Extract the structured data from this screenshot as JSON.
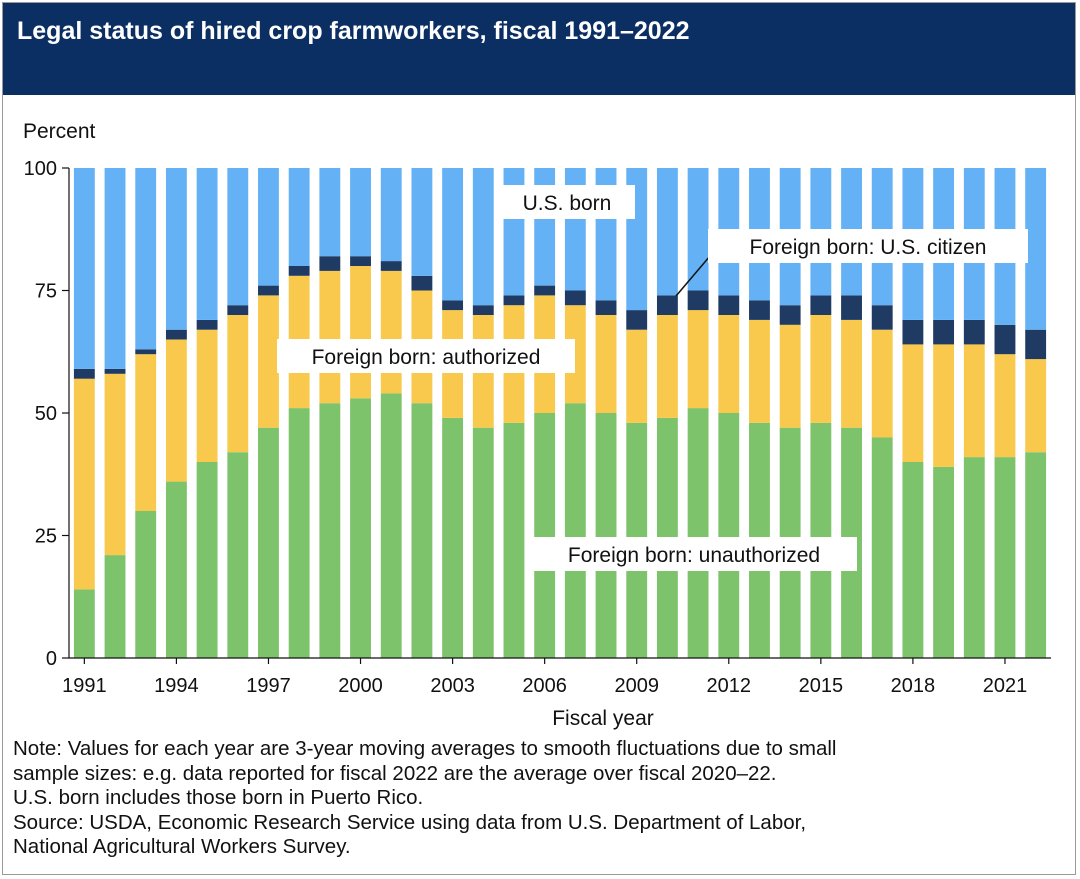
{
  "title": "Legal status of hired crop farmworkers, fiscal 1991–2022",
  "colors": {
    "header_bg": "#0c2f63",
    "unauthorized": "#7dc36b",
    "authorized": "#f8c94c",
    "citizen": "#1f3a63",
    "us_born": "#64b2f5"
  },
  "chart_data": {
    "type": "bar",
    "stacked": true,
    "title": "Legal status of hired crop farmworkers, fiscal 1991–2022",
    "ylabel": "Percent",
    "xlabel": "Fiscal year",
    "ylim": [
      0,
      100
    ],
    "yticks": [
      0,
      25,
      50,
      75,
      100
    ],
    "xtick_labels": [
      "1991",
      "1994",
      "1997",
      "2000",
      "2003",
      "2006",
      "2009",
      "2012",
      "2015",
      "2018",
      "2021"
    ],
    "grid": false,
    "legend": "inline labels",
    "categories": [
      "1991",
      "1992",
      "1993",
      "1994",
      "1995",
      "1996",
      "1997",
      "1998",
      "1999",
      "2000",
      "2001",
      "2002",
      "2003",
      "2004",
      "2005",
      "2006",
      "2007",
      "2008",
      "2009",
      "2010",
      "2011",
      "2012",
      "2013",
      "2014",
      "2015",
      "2016",
      "2017",
      "2018",
      "2019",
      "2020",
      "2021",
      "2022"
    ],
    "series": [
      {
        "name": "Foreign born: unauthorized",
        "color": "#7dc36b",
        "values": [
          14,
          21,
          30,
          36,
          40,
          42,
          47,
          51,
          52,
          53,
          54,
          52,
          49,
          47,
          48,
          50,
          52,
          50,
          48,
          49,
          51,
          50,
          48,
          47,
          48,
          47,
          45,
          40,
          39,
          41,
          41,
          42
        ]
      },
      {
        "name": "Foreign born: authorized",
        "color": "#f8c94c",
        "values": [
          43,
          37,
          32,
          29,
          27,
          28,
          27,
          27,
          27,
          27,
          25,
          23,
          22,
          23,
          24,
          24,
          20,
          20,
          19,
          21,
          20,
          20,
          21,
          21,
          22,
          22,
          22,
          24,
          25,
          23,
          21,
          19
        ]
      },
      {
        "name": "Foreign born: U.S. citizen",
        "color": "#1f3a63",
        "values": [
          2,
          1,
          1,
          2,
          2,
          2,
          2,
          2,
          3,
          2,
          2,
          3,
          2,
          2,
          2,
          2,
          3,
          3,
          4,
          4,
          4,
          4,
          4,
          4,
          4,
          5,
          5,
          5,
          5,
          5,
          6,
          6
        ]
      },
      {
        "name": "U.S. born",
        "color": "#64b2f5",
        "values": [
          41,
          41,
          37,
          33,
          31,
          28,
          24,
          20,
          18,
          18,
          19,
          22,
          27,
          28,
          26,
          24,
          25,
          27,
          29,
          26,
          25,
          26,
          27,
          28,
          26,
          26,
          28,
          31,
          31,
          31,
          32,
          33
        ]
      }
    ],
    "annotations": [
      "U.S. born",
      "Foreign born: U.S. citizen",
      "Foreign born: authorized",
      "Foreign born: unauthorized"
    ]
  },
  "notes": [
    "Note: Values for each year are 3-year moving averages to smooth fluctuations due to small",
    "sample sizes: e.g. data reported for fiscal 2022 are the average over fiscal 2020–22.",
    "U.S. born includes those born in Puerto Rico.",
    "Source: USDA, Economic Research Service using data from U.S. Department of Labor,",
    "National Agricultural Workers Survey."
  ]
}
